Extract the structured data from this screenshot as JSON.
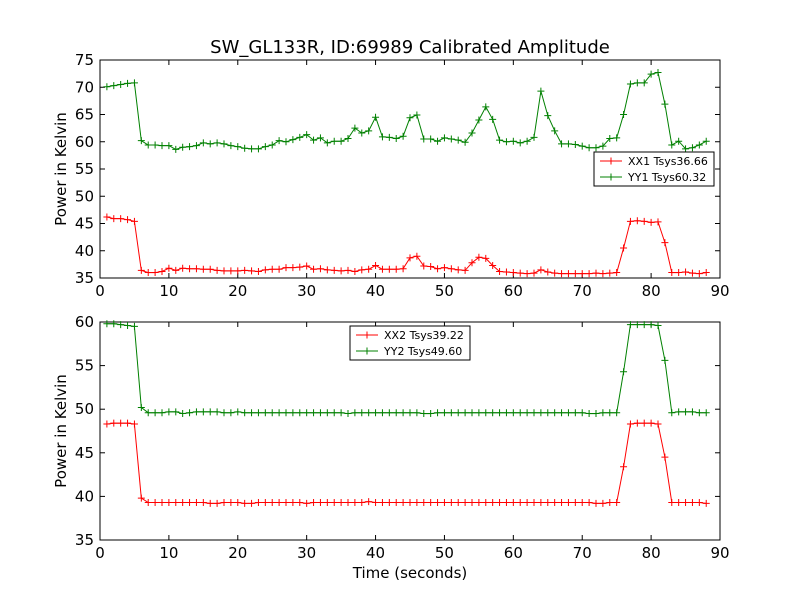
{
  "figure": {
    "title": "SW_GL133R, ID:69989 Calibrated Amplitude",
    "xlabel": "Time (seconds)"
  },
  "chart_data": [
    {
      "type": "line",
      "title": "SW_GL133R, ID:69989 Calibrated Amplitude",
      "xlabel": "",
      "ylabel": "Power in Kelvin",
      "xlim": [
        0,
        90
      ],
      "ylim": [
        35,
        75
      ],
      "xticks": [
        "0",
        "10",
        "20",
        "30",
        "40",
        "50",
        "60",
        "70",
        "80",
        "90"
      ],
      "yticks": [
        "35",
        "40",
        "45",
        "50",
        "55",
        "60",
        "65",
        "70",
        "75"
      ],
      "grid": false,
      "legend_position": "right",
      "x": [
        1,
        2,
        3,
        4,
        5,
        6,
        7,
        8,
        9,
        10,
        11,
        12,
        13,
        14,
        15,
        16,
        17,
        18,
        19,
        20,
        21,
        22,
        23,
        24,
        25,
        26,
        27,
        28,
        29,
        30,
        31,
        32,
        33,
        34,
        35,
        36,
        37,
        38,
        39,
        40,
        41,
        42,
        43,
        44,
        45,
        46,
        47,
        48,
        49,
        50,
        51,
        52,
        53,
        54,
        55,
        56,
        57,
        58,
        59,
        60,
        61,
        62,
        63,
        64,
        65,
        66,
        67,
        68,
        69,
        70,
        71,
        72,
        73,
        74,
        75,
        76,
        77,
        78,
        79,
        80,
        81,
        82,
        83,
        84,
        85,
        86,
        87,
        88
      ],
      "series": [
        {
          "name": "XX1 Tsys36.66",
          "color": "#ff0000",
          "values": [
            46.2,
            45.9,
            45.9,
            45.7,
            45.4,
            36.4,
            36.0,
            36.0,
            36.2,
            36.8,
            36.4,
            36.8,
            36.7,
            36.7,
            36.6,
            36.6,
            36.4,
            36.3,
            36.3,
            36.3,
            36.4,
            36.3,
            36.2,
            36.5,
            36.6,
            36.6,
            36.9,
            36.9,
            37.0,
            37.2,
            36.6,
            36.7,
            36.5,
            36.4,
            36.3,
            36.4,
            36.2,
            36.5,
            36.6,
            37.3,
            36.6,
            36.6,
            36.6,
            36.7,
            38.7,
            39.0,
            37.2,
            37.1,
            36.7,
            36.9,
            36.7,
            36.5,
            36.4,
            37.8,
            38.8,
            38.6,
            37.3,
            36.2,
            36.1,
            36.0,
            35.9,
            35.8,
            35.9,
            36.5,
            36.1,
            35.9,
            35.8,
            35.8,
            35.8,
            35.8,
            35.8,
            35.9,
            35.8,
            35.9,
            36.0,
            40.5,
            45.4,
            45.5,
            45.4,
            45.2,
            45.3,
            41.5,
            36.0,
            36.0,
            36.1,
            35.9,
            35.8,
            36.0
          ]
        },
        {
          "name": "YY1 Tsys60.32",
          "color": "#008000",
          "values": [
            70.1,
            70.3,
            70.5,
            70.7,
            70.8,
            60.2,
            59.4,
            59.4,
            59.3,
            59.3,
            58.6,
            59.0,
            59.1,
            59.3,
            59.8,
            59.6,
            59.8,
            59.6,
            59.3,
            59.1,
            58.8,
            58.7,
            58.7,
            59.1,
            59.4,
            60.2,
            60.0,
            60.4,
            60.8,
            61.3,
            60.3,
            60.7,
            59.8,
            60.1,
            60.1,
            60.6,
            62.5,
            61.6,
            62.0,
            64.5,
            60.9,
            60.8,
            60.6,
            61.0,
            64.4,
            64.9,
            60.5,
            60.5,
            60.1,
            60.7,
            60.5,
            60.3,
            59.9,
            61.6,
            64.0,
            66.4,
            64.1,
            60.3,
            60.0,
            60.1,
            59.8,
            60.1,
            60.8,
            69.3,
            64.8,
            62.0,
            59.6,
            59.6,
            59.5,
            59.2,
            58.9,
            58.9,
            59.2,
            60.6,
            60.7,
            65.0,
            70.6,
            70.8,
            70.8,
            72.4,
            72.7,
            66.9,
            59.4,
            60.1,
            58.7,
            58.9,
            59.4,
            60.1
          ]
        }
      ]
    },
    {
      "type": "line",
      "title": "",
      "xlabel": "Time (seconds)",
      "ylabel": "Power in Kelvin",
      "xlim": [
        0,
        90
      ],
      "ylim": [
        35,
        60
      ],
      "xticks": [
        "0",
        "10",
        "20",
        "30",
        "40",
        "50",
        "60",
        "70",
        "80",
        "90"
      ],
      "yticks": [
        "35",
        "40",
        "45",
        "50",
        "55",
        "60"
      ],
      "grid": false,
      "legend_position": "top-center",
      "x": [
        1,
        2,
        3,
        4,
        5,
        6,
        7,
        8,
        9,
        10,
        11,
        12,
        13,
        14,
        15,
        16,
        17,
        18,
        19,
        20,
        21,
        22,
        23,
        24,
        25,
        26,
        27,
        28,
        29,
        30,
        31,
        32,
        33,
        34,
        35,
        36,
        37,
        38,
        39,
        40,
        41,
        42,
        43,
        44,
        45,
        46,
        47,
        48,
        49,
        50,
        51,
        52,
        53,
        54,
        55,
        56,
        57,
        58,
        59,
        60,
        61,
        62,
        63,
        64,
        65,
        66,
        67,
        68,
        69,
        70,
        71,
        72,
        73,
        74,
        75,
        76,
        77,
        78,
        79,
        80,
        81,
        82,
        83,
        84,
        85,
        86,
        87,
        88
      ],
      "series": [
        {
          "name": "XX2 Tsys39.22",
          "color": "#ff0000",
          "values": [
            48.3,
            48.4,
            48.4,
            48.4,
            48.3,
            39.8,
            39.3,
            39.3,
            39.3,
            39.3,
            39.3,
            39.3,
            39.3,
            39.3,
            39.3,
            39.2,
            39.2,
            39.3,
            39.3,
            39.3,
            39.2,
            39.2,
            39.3,
            39.3,
            39.3,
            39.3,
            39.3,
            39.3,
            39.3,
            39.2,
            39.3,
            39.3,
            39.3,
            39.3,
            39.3,
            39.3,
            39.3,
            39.3,
            39.4,
            39.3,
            39.3,
            39.3,
            39.3,
            39.3,
            39.3,
            39.3,
            39.3,
            39.3,
            39.3,
            39.3,
            39.3,
            39.3,
            39.3,
            39.3,
            39.3,
            39.3,
            39.3,
            39.3,
            39.3,
            39.3,
            39.3,
            39.3,
            39.3,
            39.3,
            39.3,
            39.3,
            39.3,
            39.3,
            39.3,
            39.3,
            39.3,
            39.2,
            39.2,
            39.3,
            39.3,
            43.4,
            48.3,
            48.4,
            48.4,
            48.4,
            48.3,
            44.5,
            39.3,
            39.3,
            39.3,
            39.3,
            39.3,
            39.2
          ]
        },
        {
          "name": "YY2 Tsys49.60",
          "color": "#008000",
          "values": [
            59.8,
            59.8,
            59.7,
            59.6,
            59.5,
            50.2,
            49.6,
            49.6,
            49.6,
            49.7,
            49.7,
            49.5,
            49.6,
            49.7,
            49.7,
            49.7,
            49.7,
            49.6,
            49.6,
            49.7,
            49.6,
            49.6,
            49.6,
            49.6,
            49.6,
            49.6,
            49.6,
            49.6,
            49.6,
            49.6,
            49.6,
            49.6,
            49.6,
            49.6,
            49.6,
            49.5,
            49.6,
            49.6,
            49.6,
            49.6,
            49.6,
            49.6,
            49.6,
            49.6,
            49.6,
            49.6,
            49.5,
            49.5,
            49.6,
            49.6,
            49.6,
            49.6,
            49.6,
            49.6,
            49.6,
            49.6,
            49.6,
            49.6,
            49.6,
            49.6,
            49.6,
            49.6,
            49.6,
            49.6,
            49.6,
            49.6,
            49.6,
            49.6,
            49.6,
            49.6,
            49.5,
            49.5,
            49.6,
            49.6,
            49.6,
            54.3,
            59.7,
            59.7,
            59.7,
            59.7,
            59.6,
            55.6,
            49.6,
            49.7,
            49.7,
            49.7,
            49.6,
            49.6
          ]
        }
      ]
    }
  ]
}
